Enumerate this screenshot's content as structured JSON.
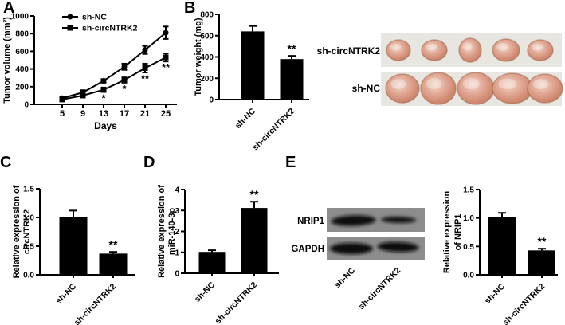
{
  "panels": {
    "A": {
      "label": "A"
    },
    "B": {
      "label": "B"
    },
    "C": {
      "label": "C"
    },
    "D": {
      "label": "D"
    },
    "E": {
      "label": "E"
    }
  },
  "colors": {
    "ink": "#000000",
    "blot_background": "#8d8d8d",
    "photo_background": "#e8e6e1",
    "tumor_outer": "#c07a60",
    "tumor_inner": "#f2d9ce"
  },
  "chart_data": [
    {
      "id": "tumor-volume",
      "type": "line",
      "ylabel_lines": [
        "Tumor volume (mm³)"
      ],
      "xlabel": "Days",
      "x": [
        5,
        9,
        13,
        17,
        21,
        25
      ],
      "ylim": [
        0,
        1000
      ],
      "yticks": [
        0,
        200,
        400,
        600,
        800,
        1000
      ],
      "ytick_decimals": 0,
      "legend_position": "top-left",
      "series": [
        {
          "name": "sh-NC",
          "marker": "circle",
          "values": [
            70,
            135,
            265,
            425,
            615,
            810
          ],
          "errors": [
            15,
            25,
            20,
            35,
            45,
            70
          ]
        },
        {
          "name": "sh-circNTRK2",
          "marker": "square",
          "values": [
            55,
            100,
            165,
            275,
            410,
            530
          ],
          "errors": [
            15,
            20,
            25,
            30,
            50,
            45
          ]
        }
      ],
      "annotations": [
        {
          "x": 13,
          "series": "sh-circNTRK2",
          "label": "*"
        },
        {
          "x": 17,
          "series": "sh-circNTRK2",
          "label": "*"
        },
        {
          "x": 21,
          "series": "sh-circNTRK2",
          "label": "**"
        },
        {
          "x": 25,
          "series": "sh-circNTRK2",
          "label": "**"
        }
      ]
    },
    {
      "id": "tumor-weight",
      "type": "bar",
      "ylabel_lines": [
        "Tumor weight (mg)"
      ],
      "categories": [
        "sh-NC",
        "sh-circNTRK2"
      ],
      "values": [
        640,
        380
      ],
      "errors": [
        50,
        30
      ],
      "sig": [
        "",
        "**"
      ],
      "ylim": [
        0,
        800
      ],
      "yticks": [
        0,
        200,
        400,
        600,
        800
      ],
      "ytick_decimals": 0
    },
    {
      "id": "circntrk2-expression",
      "type": "bar",
      "ylabel_lines": [
        "Relative expression of",
        "circNTRK2"
      ],
      "categories": [
        "sh-NC",
        "sh-circNTRK2"
      ],
      "values": [
        1.01,
        0.37
      ],
      "errors": [
        0.11,
        0.03
      ],
      "sig": [
        "",
        "**"
      ],
      "ylim": [
        0,
        1.5
      ],
      "yticks": [
        0,
        0.5,
        1,
        1.5
      ],
      "ytick_decimals": 1
    },
    {
      "id": "mir-140-3p-expression",
      "type": "bar",
      "ylabel_lines": [
        "Relative expression of",
        "miR-140-3p"
      ],
      "categories": [
        "sh-NC",
        "sh-circNTRK2"
      ],
      "values": [
        1.02,
        3.12
      ],
      "errors": [
        0.08,
        0.3
      ],
      "sig": [
        "",
        "**"
      ],
      "ylim": [
        0,
        4
      ],
      "yticks": [
        0,
        1,
        2,
        3,
        4
      ],
      "ytick_decimals": 0
    },
    {
      "id": "nrip1-expression",
      "type": "bar",
      "ylabel_lines": [
        "Relative expression",
        "of NRIP1"
      ],
      "categories": [
        "sh-NC",
        "sh-circNTRK2"
      ],
      "values": [
        1.01,
        0.43
      ],
      "errors": [
        0.08,
        0.03
      ],
      "sig": [
        "",
        "**"
      ],
      "ylim": [
        0,
        1.5
      ],
      "yticks": [
        0,
        0.5,
        1,
        1.5
      ],
      "ytick_decimals": 1
    }
  ],
  "photos": {
    "rows": [
      {
        "label": "sh-circNTRK2",
        "tumor_count": 5
      },
      {
        "label": "sh-NC",
        "tumor_count": 5
      }
    ]
  },
  "blot": {
    "row_labels": [
      "NRIP1",
      "GAPDH"
    ],
    "lane_labels": [
      "sh-NC",
      "sh-circNTRK2"
    ]
  }
}
